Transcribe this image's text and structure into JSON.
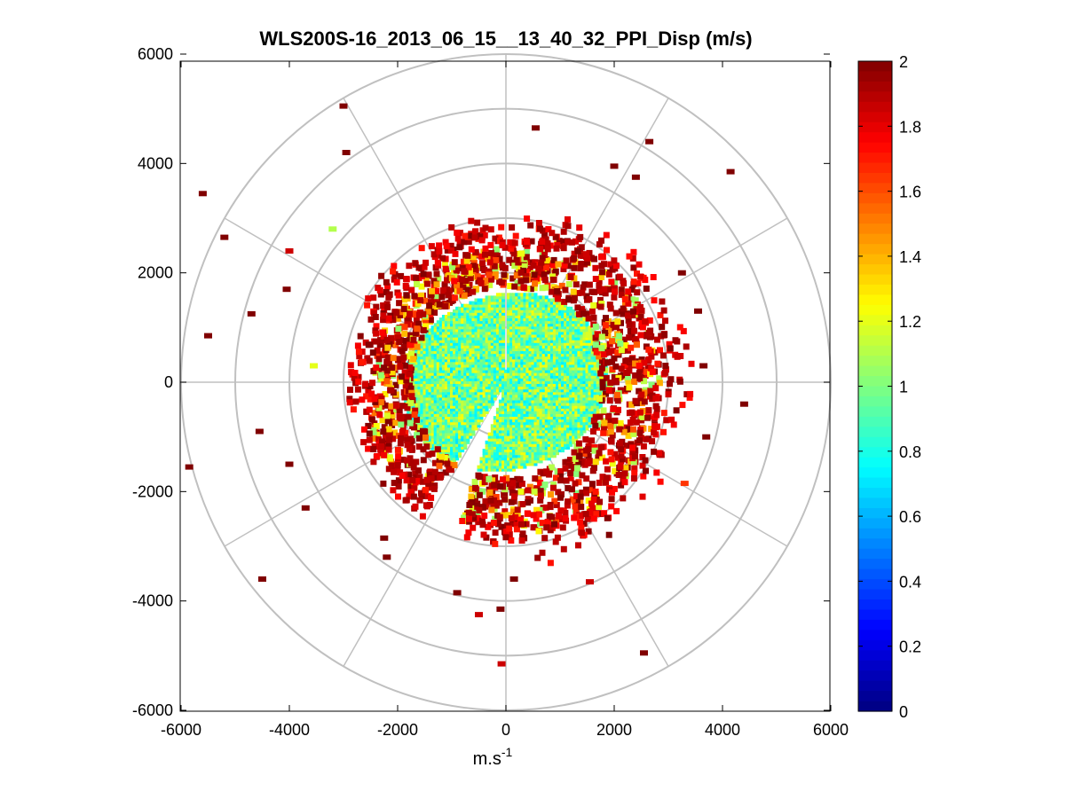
{
  "chart_data": {
    "type": "polar-scatter",
    "title": "WLS200S-16_2013_06_15__13_40_32_PPI_Disp (m/s)",
    "xlabel_base": "m.s",
    "xlabel_exp": "-1",
    "ylabel": "",
    "xlim": [
      -6000,
      6000
    ],
    "ylim": [
      -6000,
      6000
    ],
    "xticks": [
      -6000,
      -4000,
      -2000,
      0,
      2000,
      4000,
      6000
    ],
    "yticks": [
      -6000,
      -4000,
      -2000,
      0,
      2000,
      4000,
      6000
    ],
    "xtick_labels": [
      "-6000",
      "-4000",
      "-2000",
      "0",
      "2000",
      "4000",
      "6000"
    ],
    "ytick_labels": [
      "-6000",
      "-4000",
      "-2000",
      "0",
      "2000",
      "4000",
      "6000"
    ],
    "polar_grid_radii": [
      1000,
      2000,
      3000,
      4000,
      5000,
      6000
    ],
    "polar_grid_angle_step_deg": 30,
    "colormap": "jet",
    "colorbar": {
      "min": 0,
      "max": 2,
      "ticks": [
        0,
        0.2,
        0.4,
        0.6,
        0.8,
        1,
        1.2,
        1.4,
        1.6,
        1.8,
        2
      ],
      "tick_labels": [
        "0",
        "0.2",
        "0.4",
        "0.6",
        "0.8",
        "1",
        "1.2",
        "1.4",
        "1.6",
        "1.8",
        "2"
      ]
    },
    "data_description_regions": [
      {
        "r_min": 0,
        "r_max": 1900,
        "value_range": [
          0.7,
          1.25
        ]
      },
      {
        "r_min": 1900,
        "r_max": 2400,
        "value_range": [
          1.0,
          2.0
        ]
      },
      {
        "r_min": 2400,
        "r_max": 3200,
        "value_range": [
          1.7,
          2.0
        ]
      }
    ],
    "sparse_points": [
      {
        "x": -3000,
        "y": 5050,
        "v": 2
      },
      {
        "x": -2950,
        "y": 4200,
        "v": 2
      },
      {
        "x": 550,
        "y": 4650,
        "v": 2
      },
      {
        "x": 2650,
        "y": 4400,
        "v": 2
      },
      {
        "x": 4150,
        "y": 3850,
        "v": 2
      },
      {
        "x": 2000,
        "y": 3950,
        "v": 2
      },
      {
        "x": 2400,
        "y": 3750,
        "v": 2
      },
      {
        "x": -5600,
        "y": 3450,
        "v": 2
      },
      {
        "x": -5200,
        "y": 2650,
        "v": 2
      },
      {
        "x": -4700,
        "y": 1250,
        "v": 2
      },
      {
        "x": -5500,
        "y": 850,
        "v": 2
      },
      {
        "x": -3200,
        "y": 2800,
        "v": 1.1
      },
      {
        "x": -4000,
        "y": 2400,
        "v": 1.85
      },
      {
        "x": -4050,
        "y": 1700,
        "v": 2
      },
      {
        "x": -4550,
        "y": -900,
        "v": 2
      },
      {
        "x": -5850,
        "y": -1550,
        "v": 2
      },
      {
        "x": -3700,
        "y": -2300,
        "v": 2
      },
      {
        "x": -4500,
        "y": -3600,
        "v": 2
      },
      {
        "x": -4000,
        "y": -1500,
        "v": 2
      },
      {
        "x": -2250,
        "y": -2850,
        "v": 2
      },
      {
        "x": -2200,
        "y": -3200,
        "v": 2
      },
      {
        "x": -900,
        "y": -3850,
        "v": 2
      },
      {
        "x": -500,
        "y": -4250,
        "v": 1.85
      },
      {
        "x": -100,
        "y": -4150,
        "v": 2
      },
      {
        "x": 150,
        "y": -3600,
        "v": 2
      },
      {
        "x": -80,
        "y": -5150,
        "v": 1.85
      },
      {
        "x": 1550,
        "y": -3650,
        "v": 1.85
      },
      {
        "x": 2550,
        "y": -4950,
        "v": 2
      },
      {
        "x": 3300,
        "y": -1850,
        "v": 1.65
      },
      {
        "x": 4400,
        "y": -400,
        "v": 2
      },
      {
        "x": 3700,
        "y": -1000,
        "v": 2
      },
      {
        "x": 3250,
        "y": 2000,
        "v": 2
      },
      {
        "x": 3550,
        "y": 1300,
        "v": 2
      },
      {
        "x": 3650,
        "y": 300,
        "v": 2
      },
      {
        "x": -3550,
        "y": 300,
        "v": 1.2
      }
    ]
  }
}
